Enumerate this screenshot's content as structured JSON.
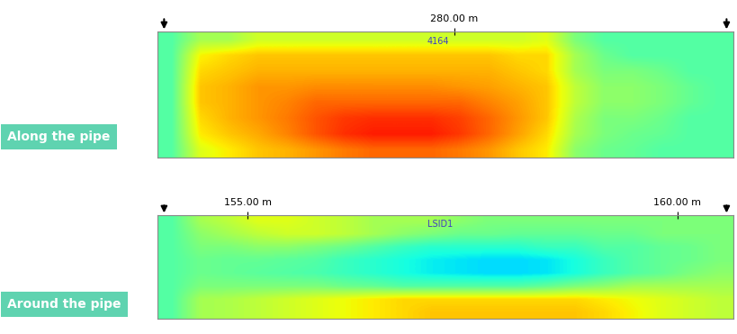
{
  "chart_data": [
    {
      "type": "heatmap",
      "title": "Along the pipe",
      "xlim": [
        276.7,
        283.1
      ],
      "xticks": [
        {
          "value": 280,
          "label": "280.00 m"
        }
      ],
      "tick_labels": "x",
      "annotations": [
        {
          "text": "4164",
          "x": 279.82
        }
      ],
      "color_range": [
        0,
        1
      ],
      "cells": [
        [
          0.45,
          0.55,
          0.55,
          0.6,
          0.6,
          0.6,
          0.6,
          0.6,
          0.6,
          0.6,
          0.6,
          0.6,
          0.6,
          0.62,
          0.5,
          0.45,
          0.45,
          0.45,
          0.45,
          0.45
        ],
        [
          0.45,
          0.65,
          0.68,
          0.7,
          0.7,
          0.7,
          0.7,
          0.7,
          0.7,
          0.7,
          0.7,
          0.7,
          0.68,
          0.68,
          0.55,
          0.48,
          0.45,
          0.45,
          0.45,
          0.45
        ],
        [
          0.45,
          0.68,
          0.7,
          0.72,
          0.72,
          0.72,
          0.72,
          0.72,
          0.72,
          0.72,
          0.72,
          0.72,
          0.7,
          0.68,
          0.55,
          0.5,
          0.5,
          0.48,
          0.45,
          0.45
        ],
        [
          0.45,
          0.7,
          0.72,
          0.75,
          0.75,
          0.76,
          0.76,
          0.76,
          0.76,
          0.76,
          0.75,
          0.74,
          0.72,
          0.7,
          0.58,
          0.52,
          0.52,
          0.5,
          0.47,
          0.45
        ],
        [
          0.45,
          0.7,
          0.72,
          0.75,
          0.77,
          0.8,
          0.8,
          0.8,
          0.8,
          0.8,
          0.8,
          0.77,
          0.74,
          0.7,
          0.58,
          0.52,
          0.52,
          0.5,
          0.47,
          0.45
        ],
        [
          0.45,
          0.68,
          0.72,
          0.75,
          0.78,
          0.82,
          0.85,
          0.86,
          0.86,
          0.86,
          0.84,
          0.8,
          0.75,
          0.7,
          0.56,
          0.5,
          0.5,
          0.48,
          0.45,
          0.45
        ],
        [
          0.45,
          0.66,
          0.7,
          0.73,
          0.77,
          0.82,
          0.86,
          0.88,
          0.88,
          0.88,
          0.85,
          0.8,
          0.74,
          0.68,
          0.55,
          0.5,
          0.48,
          0.47,
          0.45,
          0.45
        ],
        [
          0.45,
          0.62,
          0.66,
          0.7,
          0.72,
          0.75,
          0.78,
          0.8,
          0.8,
          0.8,
          0.78,
          0.75,
          0.7,
          0.66,
          0.52,
          0.48,
          0.47,
          0.45,
          0.45,
          0.45
        ]
      ]
    },
    {
      "type": "heatmap",
      "title": "Around the pipe",
      "xlim": [
        153.95,
        160.65
      ],
      "xticks": [
        {
          "value": 155,
          "label": "155.00 m"
        },
        {
          "value": 160,
          "label": "160.00 m"
        }
      ],
      "tick_labels": "x",
      "annotations": [
        {
          "text": "LSID1",
          "x": 157.24
        }
      ],
      "color_range": [
        0,
        1
      ],
      "cells": [
        [
          0.45,
          0.55,
          0.58,
          0.62,
          0.62,
          0.6,
          0.58,
          0.55,
          0.55,
          0.55,
          0.52,
          0.5,
          0.5,
          0.5,
          0.5,
          0.5,
          0.5,
          0.5,
          0.5,
          0.5
        ],
        [
          0.45,
          0.52,
          0.55,
          0.58,
          0.6,
          0.6,
          0.58,
          0.55,
          0.52,
          0.5,
          0.48,
          0.48,
          0.47,
          0.47,
          0.47,
          0.48,
          0.48,
          0.5,
          0.5,
          0.5
        ],
        [
          0.45,
          0.5,
          0.5,
          0.52,
          0.52,
          0.5,
          0.48,
          0.45,
          0.42,
          0.4,
          0.4,
          0.4,
          0.4,
          0.42,
          0.42,
          0.45,
          0.45,
          0.47,
          0.48,
          0.5
        ],
        [
          0.45,
          0.48,
          0.47,
          0.47,
          0.46,
          0.45,
          0.42,
          0.4,
          0.38,
          0.36,
          0.35,
          0.34,
          0.34,
          0.35,
          0.38,
          0.42,
          0.45,
          0.47,
          0.48,
          0.5
        ],
        [
          0.45,
          0.48,
          0.47,
          0.46,
          0.45,
          0.44,
          0.42,
          0.4,
          0.38,
          0.36,
          0.35,
          0.34,
          0.34,
          0.35,
          0.38,
          0.42,
          0.45,
          0.47,
          0.5,
          0.52
        ],
        [
          0.45,
          0.5,
          0.5,
          0.5,
          0.5,
          0.5,
          0.48,
          0.47,
          0.45,
          0.45,
          0.45,
          0.45,
          0.45,
          0.47,
          0.5,
          0.52,
          0.55,
          0.55,
          0.55,
          0.55
        ],
        [
          0.45,
          0.55,
          0.56,
          0.58,
          0.6,
          0.62,
          0.64,
          0.66,
          0.68,
          0.68,
          0.68,
          0.68,
          0.68,
          0.68,
          0.68,
          0.66,
          0.64,
          0.62,
          0.6,
          0.58
        ],
        [
          0.45,
          0.55,
          0.56,
          0.58,
          0.6,
          0.62,
          0.64,
          0.66,
          0.68,
          0.7,
          0.7,
          0.7,
          0.7,
          0.7,
          0.7,
          0.68,
          0.65,
          0.62,
          0.6,
          0.58
        ]
      ]
    }
  ]
}
